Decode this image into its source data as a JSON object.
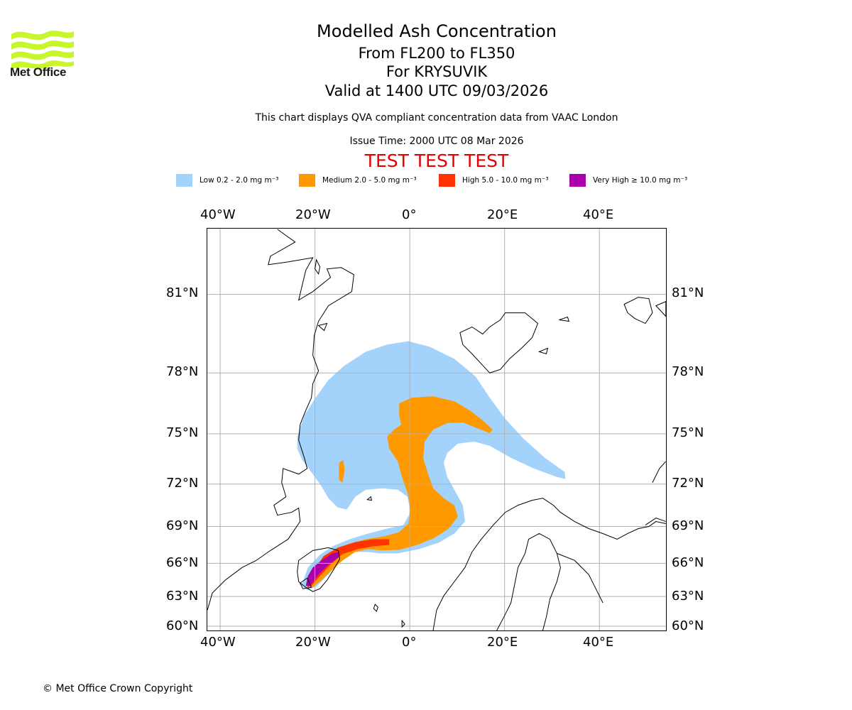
{
  "logo": {
    "name": "Met Office",
    "color": "#c8f52c"
  },
  "title": "Modelled Ash Concentration",
  "subtitle_levels": "From FL200 to FL350",
  "subtitle_volcano": "For KRYSUVIK",
  "subtitle_valid": "Valid at 1400 UTC 09/03/2026",
  "disclaimer": "This chart displays QVA compliant concentration data from VAAC London",
  "issue_time": "Issue Time: 2000 UTC 08 Mar 2026",
  "test_banner": "TEST TEST TEST",
  "legend": [
    {
      "label": "Low 0.2 - 2.0 mg m⁻³",
      "color": "#a3d3fb"
    },
    {
      "label": "Medium 2.0 - 5.0 mg m⁻³",
      "color": "#ff9900"
    },
    {
      "label": "High 5.0 - 10.0 mg m⁻³",
      "color": "#ff3300"
    },
    {
      "label": "Very High ≥ 10.0 mg m⁻³",
      "color": "#aa00aa"
    }
  ],
  "axes": {
    "lon_ticks": [
      "40°W",
      "20°W",
      "0°",
      "20°E",
      "40°E"
    ],
    "lat_ticks": [
      "81°N",
      "78°N",
      "75°N",
      "72°N",
      "69°N",
      "66°N",
      "63°N",
      "60°N"
    ]
  },
  "copyright": "© Met Office Crown Copyright"
}
